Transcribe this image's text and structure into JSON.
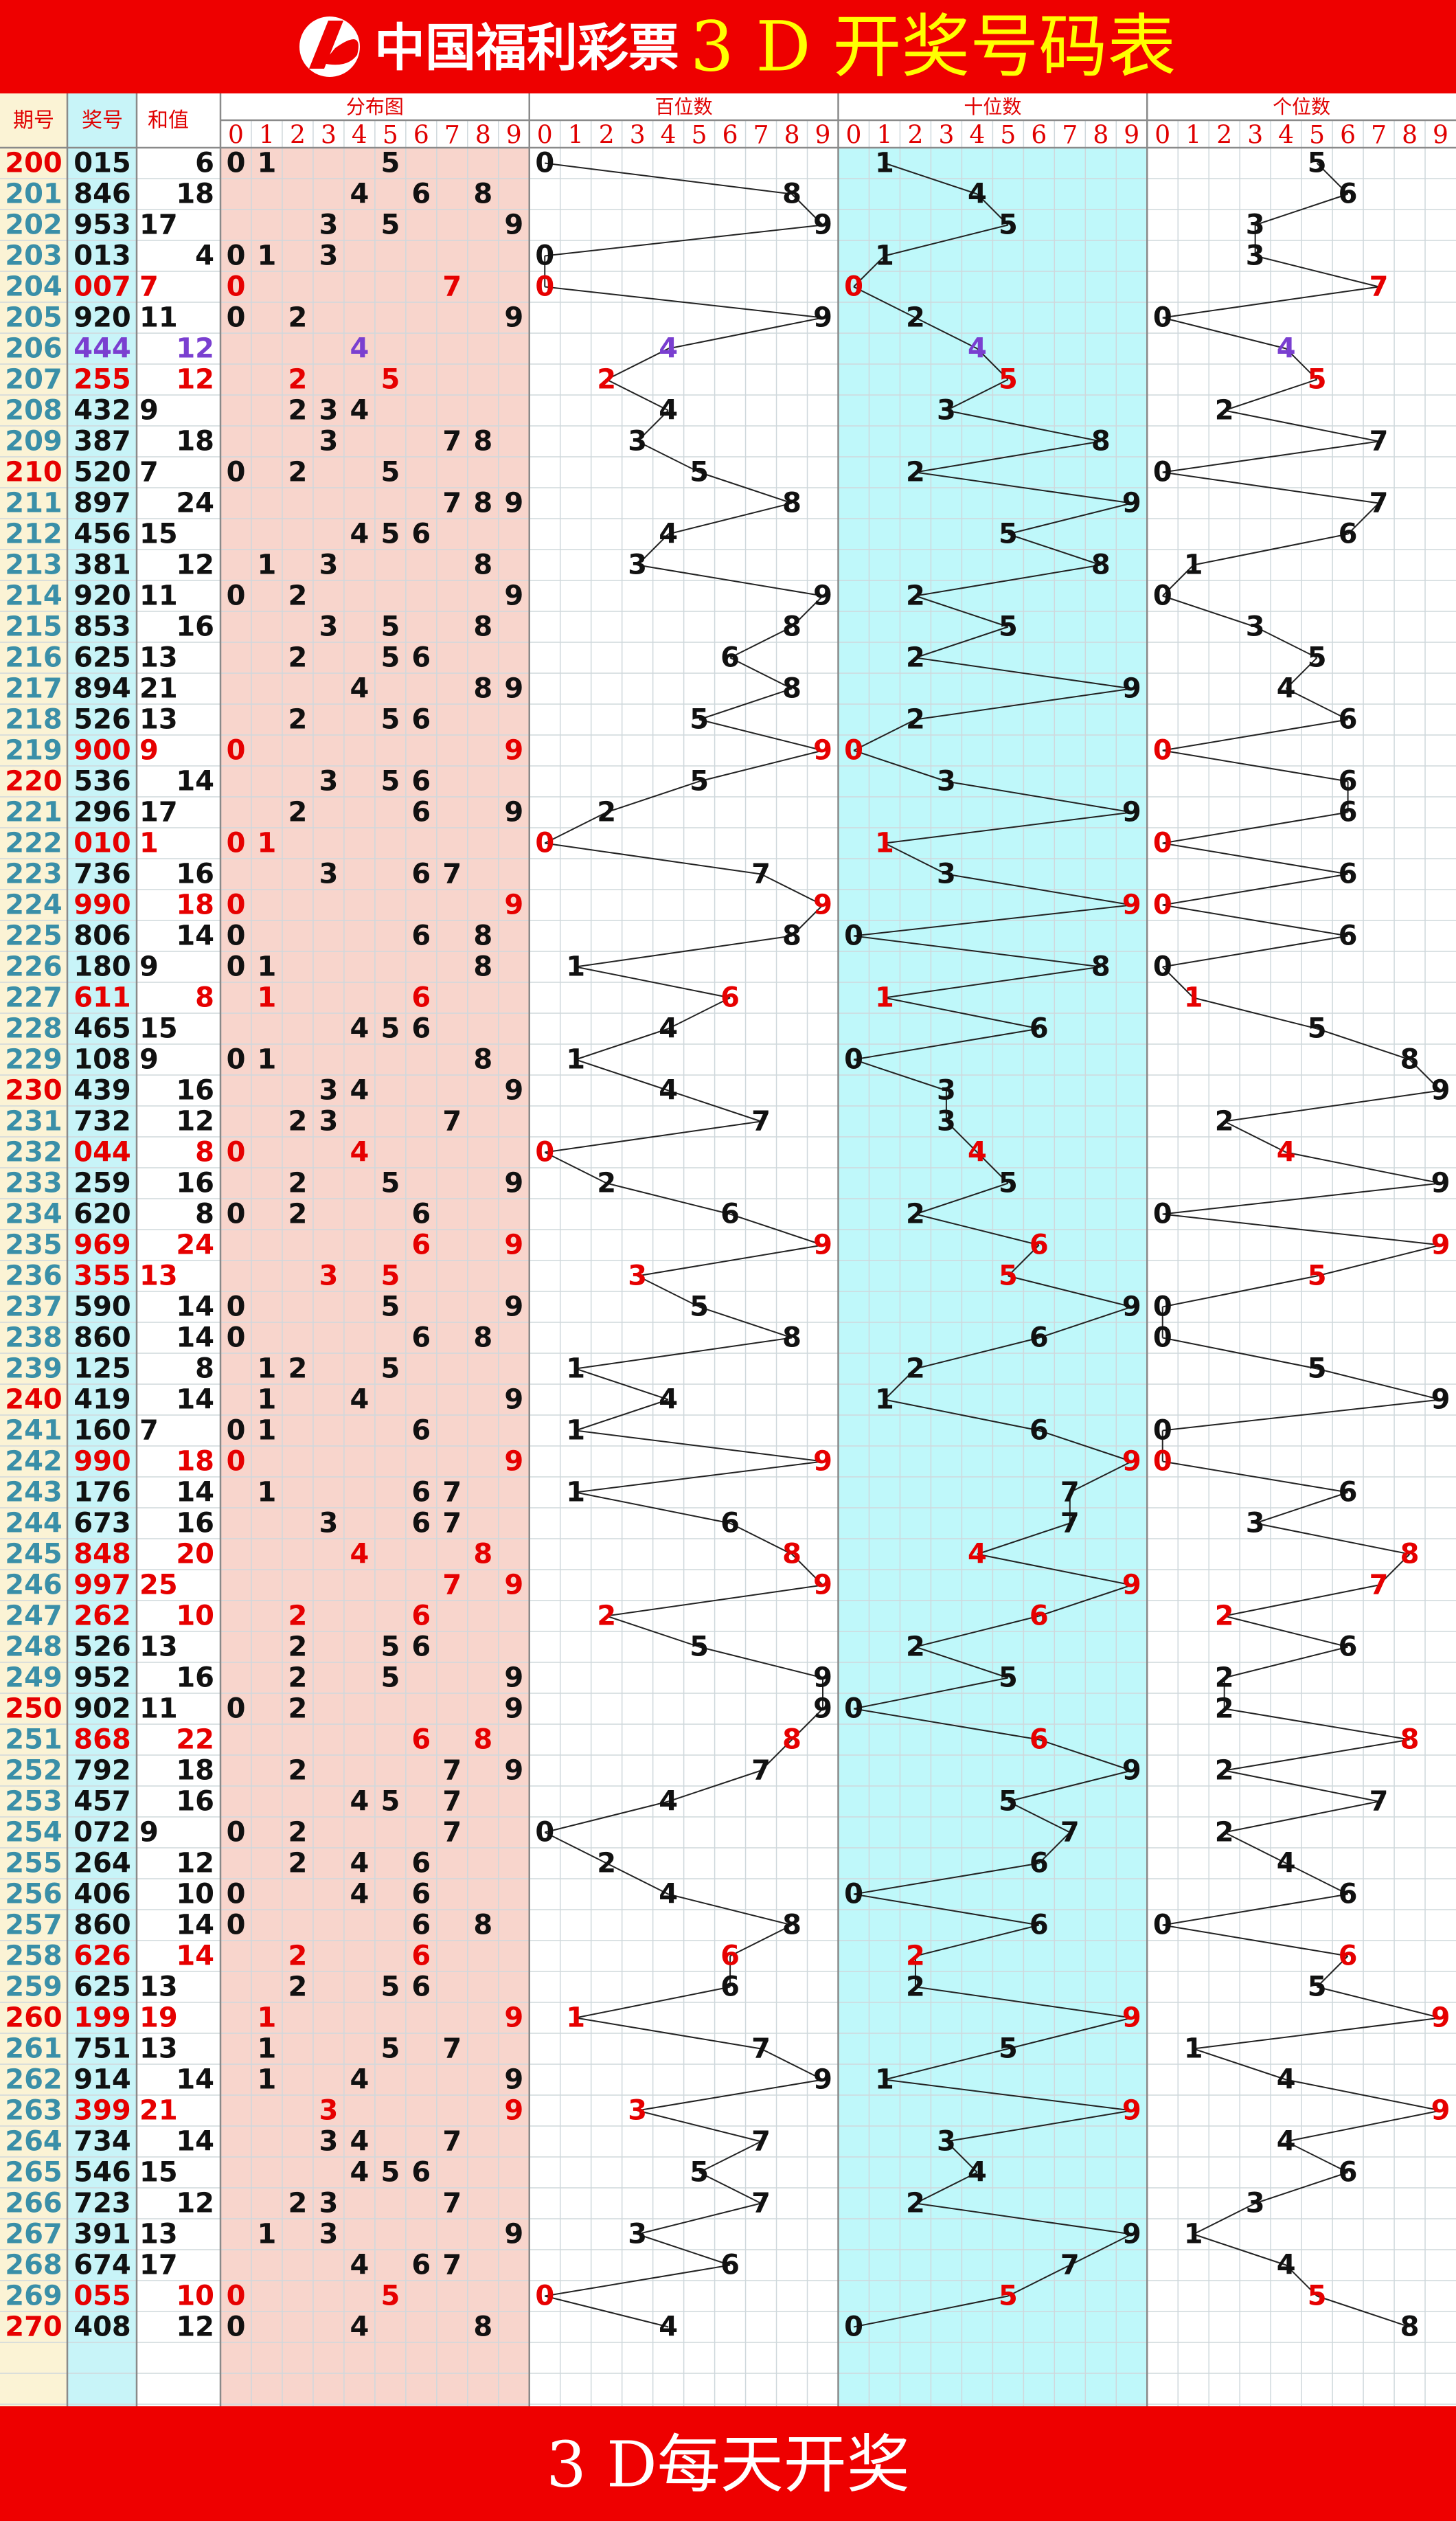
{
  "header": {
    "logo": "中国福利彩票",
    "title": "3 D 开奖号码表"
  },
  "columns": {
    "issue": "期号",
    "number": "奖号",
    "sum": "和值",
    "zones": [
      "分布图",
      "百位数",
      "十位数",
      "个位数"
    ],
    "digits": [
      0,
      1,
      2,
      3,
      4,
      5,
      6,
      7,
      8,
      9
    ]
  },
  "table": {
    "rows": [
      [
        200,
        [
          0,
          1,
          5
        ],
        6
      ],
      [
        201,
        [
          8,
          4,
          6
        ],
        18
      ],
      [
        202,
        [
          9,
          5,
          3
        ],
        17
      ],
      [
        203,
        [
          0,
          1,
          3
        ],
        4
      ],
      [
        204,
        [
          0,
          0,
          7
        ],
        7
      ],
      [
        205,
        [
          9,
          2,
          0
        ],
        11
      ],
      [
        206,
        [
          4,
          4,
          4
        ],
        12
      ],
      [
        207,
        [
          2,
          5,
          5
        ],
        12
      ],
      [
        208,
        [
          4,
          3,
          2
        ],
        9
      ],
      [
        209,
        [
          3,
          8,
          7
        ],
        18
      ],
      [
        210,
        [
          5,
          2,
          0
        ],
        7
      ],
      [
        211,
        [
          8,
          9,
          7
        ],
        24
      ],
      [
        212,
        [
          4,
          5,
          6
        ],
        15
      ],
      [
        213,
        [
          3,
          8,
          1
        ],
        12
      ],
      [
        214,
        [
          9,
          2,
          0
        ],
        11
      ],
      [
        215,
        [
          8,
          5,
          3
        ],
        16
      ],
      [
        216,
        [
          6,
          2,
          5
        ],
        13
      ],
      [
        217,
        [
          8,
          9,
          4
        ],
        21
      ],
      [
        218,
        [
          5,
          2,
          6
        ],
        13
      ],
      [
        219,
        [
          9,
          0,
          0
        ],
        9
      ],
      [
        220,
        [
          5,
          3,
          6
        ],
        14
      ],
      [
        221,
        [
          2,
          9,
          6
        ],
        17
      ],
      [
        222,
        [
          0,
          1,
          0
        ],
        1
      ],
      [
        223,
        [
          7,
          3,
          6
        ],
        16
      ],
      [
        224,
        [
          9,
          9,
          0
        ],
        18
      ],
      [
        225,
        [
          8,
          0,
          6
        ],
        14
      ],
      [
        226,
        [
          1,
          8,
          0
        ],
        9
      ],
      [
        227,
        [
          6,
          1,
          1
        ],
        8
      ],
      [
        228,
        [
          4,
          6,
          5
        ],
        15
      ],
      [
        229,
        [
          1,
          0,
          8
        ],
        9
      ],
      [
        230,
        [
          4,
          3,
          9
        ],
        16
      ],
      [
        231,
        [
          7,
          3,
          2
        ],
        12
      ],
      [
        232,
        [
          0,
          4,
          4
        ],
        8
      ],
      [
        233,
        [
          2,
          5,
          9
        ],
        16
      ],
      [
        234,
        [
          6,
          2,
          0
        ],
        8
      ],
      [
        235,
        [
          9,
          6,
          9
        ],
        24
      ],
      [
        236,
        [
          3,
          5,
          5
        ],
        13
      ],
      [
        237,
        [
          5,
          9,
          0
        ],
        14
      ],
      [
        238,
        [
          8,
          6,
          0
        ],
        14
      ],
      [
        239,
        [
          1,
          2,
          5
        ],
        8
      ],
      [
        240,
        [
          4,
          1,
          9
        ],
        14
      ],
      [
        241,
        [
          1,
          6,
          0
        ],
        7
      ],
      [
        242,
        [
          9,
          9,
          0
        ],
        18
      ],
      [
        243,
        [
          1,
          7,
          6
        ],
        14
      ],
      [
        244,
        [
          6,
          7,
          3
        ],
        16
      ],
      [
        245,
        [
          8,
          4,
          8
        ],
        20
      ],
      [
        246,
        [
          9,
          9,
          7
        ],
        25
      ],
      [
        247,
        [
          2,
          6,
          2
        ],
        10
      ],
      [
        248,
        [
          5,
          2,
          6
        ],
        13
      ],
      [
        249,
        [
          9,
          5,
          2
        ],
        16
      ],
      [
        250,
        [
          9,
          0,
          2
        ],
        11
      ],
      [
        251,
        [
          8,
          6,
          8
        ],
        22
      ],
      [
        252,
        [
          7,
          9,
          2
        ],
        18
      ],
      [
        253,
        [
          4,
          5,
          7
        ],
        16
      ],
      [
        254,
        [
          0,
          7,
          2
        ],
        9
      ],
      [
        255,
        [
          2,
          6,
          4
        ],
        12
      ],
      [
        256,
        [
          4,
          0,
          6
        ],
        10
      ],
      [
        257,
        [
          8,
          6,
          0
        ],
        14
      ],
      [
        258,
        [
          6,
          2,
          6
        ],
        14
      ],
      [
        259,
        [
          6,
          2,
          5
        ],
        13
      ],
      [
        260,
        [
          1,
          9,
          9
        ],
        19
      ],
      [
        261,
        [
          7,
          5,
          1
        ],
        13
      ],
      [
        262,
        [
          9,
          1,
          4
        ],
        14
      ],
      [
        263,
        [
          3,
          9,
          9
        ],
        21
      ],
      [
        264,
        [
          7,
          3,
          4
        ],
        14
      ],
      [
        265,
        [
          5,
          4,
          6
        ],
        15
      ],
      [
        266,
        [
          7,
          2,
          3
        ],
        12
      ],
      [
        267,
        [
          3,
          9,
          1
        ],
        13
      ],
      [
        268,
        [
          6,
          7,
          4
        ],
        17
      ],
      [
        269,
        [
          0,
          5,
          5
        ],
        10
      ],
      [
        270,
        [
          4,
          0,
          8
        ],
        12
      ]
    ]
  },
  "footer": "3 D每天开奖"
}
